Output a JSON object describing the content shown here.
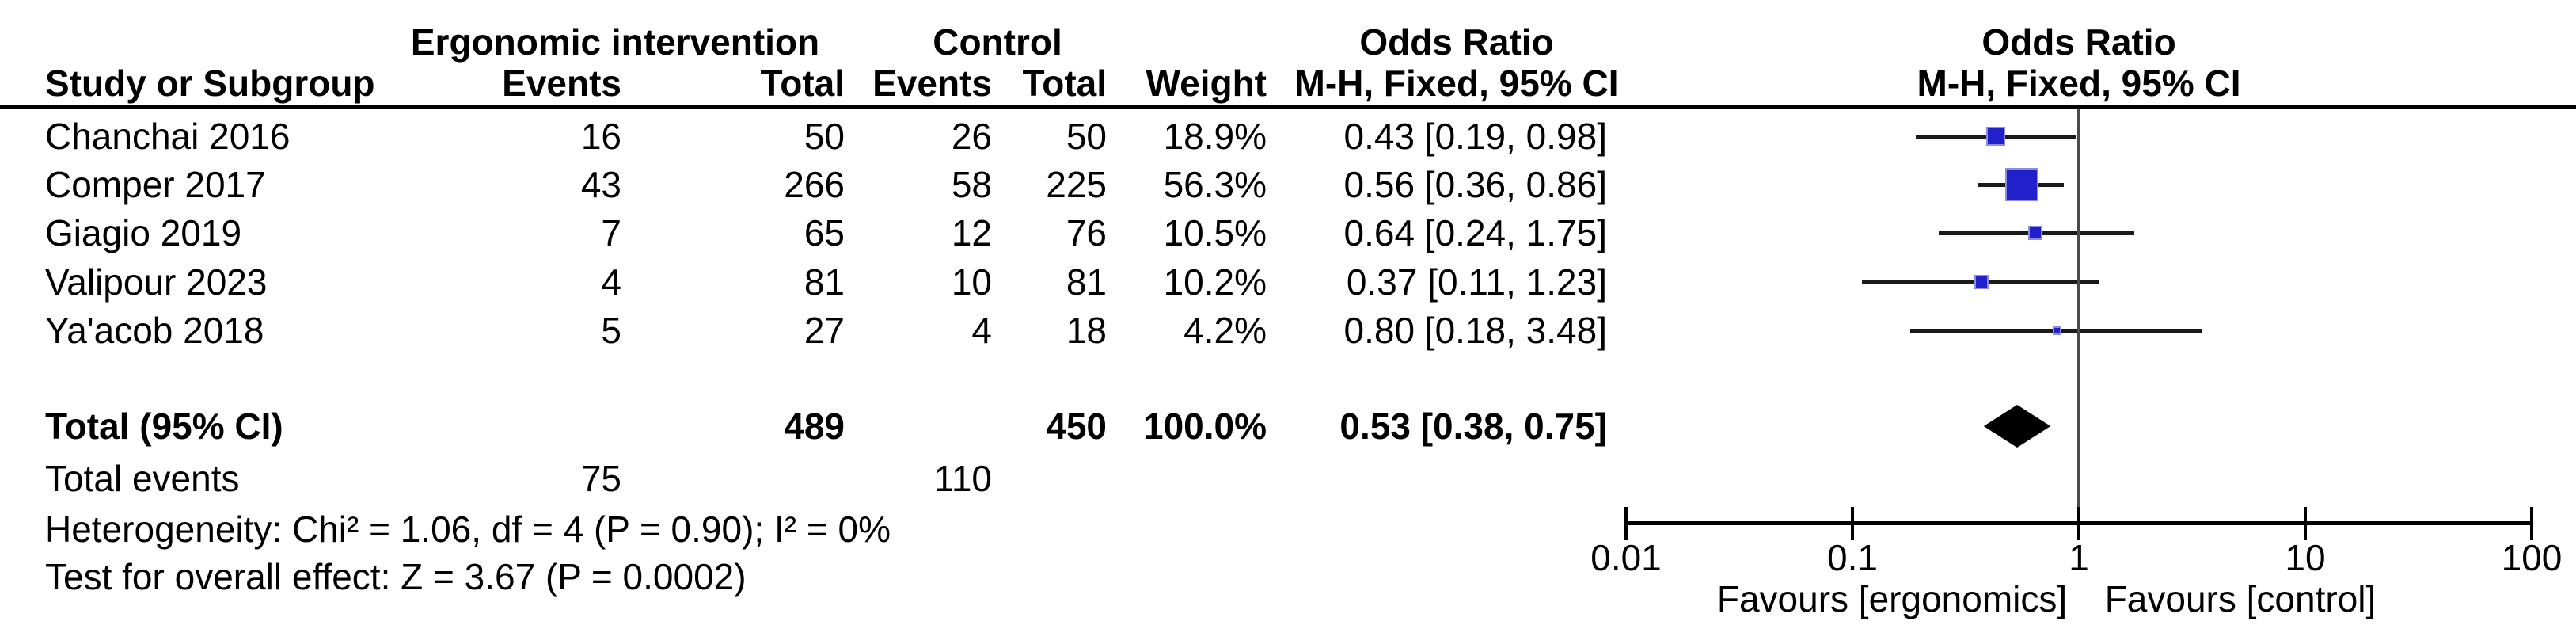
{
  "table": {
    "group1_header": "Ergonomic intervention",
    "group2_header": "Control",
    "or_header_line1": "Odds Ratio",
    "or_header_line2": "M-H, Fixed, 95% CI",
    "col_study": "Study or Subgroup",
    "col_events": "Events",
    "col_total": "Total",
    "col_weight": "Weight",
    "rows": [
      {
        "study": "Chanchai 2016",
        "events": "16",
        "total": "50",
        "c_events": "26",
        "c_total": "50",
        "weight": "18.9%",
        "or_text": "0.43 [0.19, 0.98]"
      },
      {
        "study": "Comper 2017",
        "events": "43",
        "total": "266",
        "c_events": "58",
        "c_total": "225",
        "weight": "56.3%",
        "or_text": "0.56 [0.36, 0.86]"
      },
      {
        "study": "Giagio 2019",
        "events": "7",
        "total": "65",
        "c_events": "12",
        "c_total": "76",
        "weight": "10.5%",
        "or_text": "0.64 [0.24, 1.75]"
      },
      {
        "study": "Valipour 2023",
        "events": "4",
        "total": "81",
        "c_events": "10",
        "c_total": "81",
        "weight": "10.2%",
        "or_text": "0.37 [0.11, 1.23]"
      },
      {
        "study": "Ya'acob 2018",
        "events": "5",
        "total": "27",
        "c_events": "4",
        "c_total": "18",
        "weight": "4.2%",
        "or_text": "0.80 [0.18, 3.48]"
      }
    ],
    "total_row": {
      "label": "Total (95% CI)",
      "total": "489",
      "c_total": "450",
      "weight": "100.0%",
      "or_text": "0.53 [0.38, 0.75]"
    },
    "total_events": {
      "label": "Total events",
      "events": "75",
      "c_events": "110"
    },
    "heterogeneity": "Heterogeneity: Chi² = 1.06, df = 4 (P = 0.90); I² = 0%",
    "overall_effect": "Test for overall effect: Z = 3.67 (P = 0.0002)"
  },
  "chart_data": {
    "type": "forest",
    "effect_measure": "Odds Ratio, M-H, Fixed, 95% CI",
    "scale": "log10",
    "axis_ticks": [
      "0.01",
      "0.1",
      "1",
      "10",
      "100"
    ],
    "axis_range": [
      0.01,
      100
    ],
    "null_line": 1,
    "favours_left": "Favours [ergonomics]",
    "favours_right": "Favours [control]",
    "studies": [
      {
        "name": "Chanchai 2016",
        "or": 0.43,
        "ci_low": 0.19,
        "ci_high": 0.98,
        "weight_pct": 18.9
      },
      {
        "name": "Comper 2017",
        "or": 0.56,
        "ci_low": 0.36,
        "ci_high": 0.86,
        "weight_pct": 56.3
      },
      {
        "name": "Giagio 2019",
        "or": 0.64,
        "ci_low": 0.24,
        "ci_high": 1.75,
        "weight_pct": 10.5
      },
      {
        "name": "Valipour 2023",
        "or": 0.37,
        "ci_low": 0.11,
        "ci_high": 1.23,
        "weight_pct": 10.2
      },
      {
        "name": "Ya'acob 2018",
        "or": 0.8,
        "ci_low": 0.18,
        "ci_high": 3.48,
        "weight_pct": 4.2
      }
    ],
    "total": {
      "or": 0.53,
      "ci_low": 0.38,
      "ci_high": 0.75,
      "weight_pct": 100.0
    },
    "colors": {
      "square": "#2121cc",
      "square_border": "#8c8ce0",
      "diamond": "#000000",
      "ci_line": "#1a1a1a",
      "null_line": "#4a4a4a",
      "axis": "#000000"
    }
  }
}
